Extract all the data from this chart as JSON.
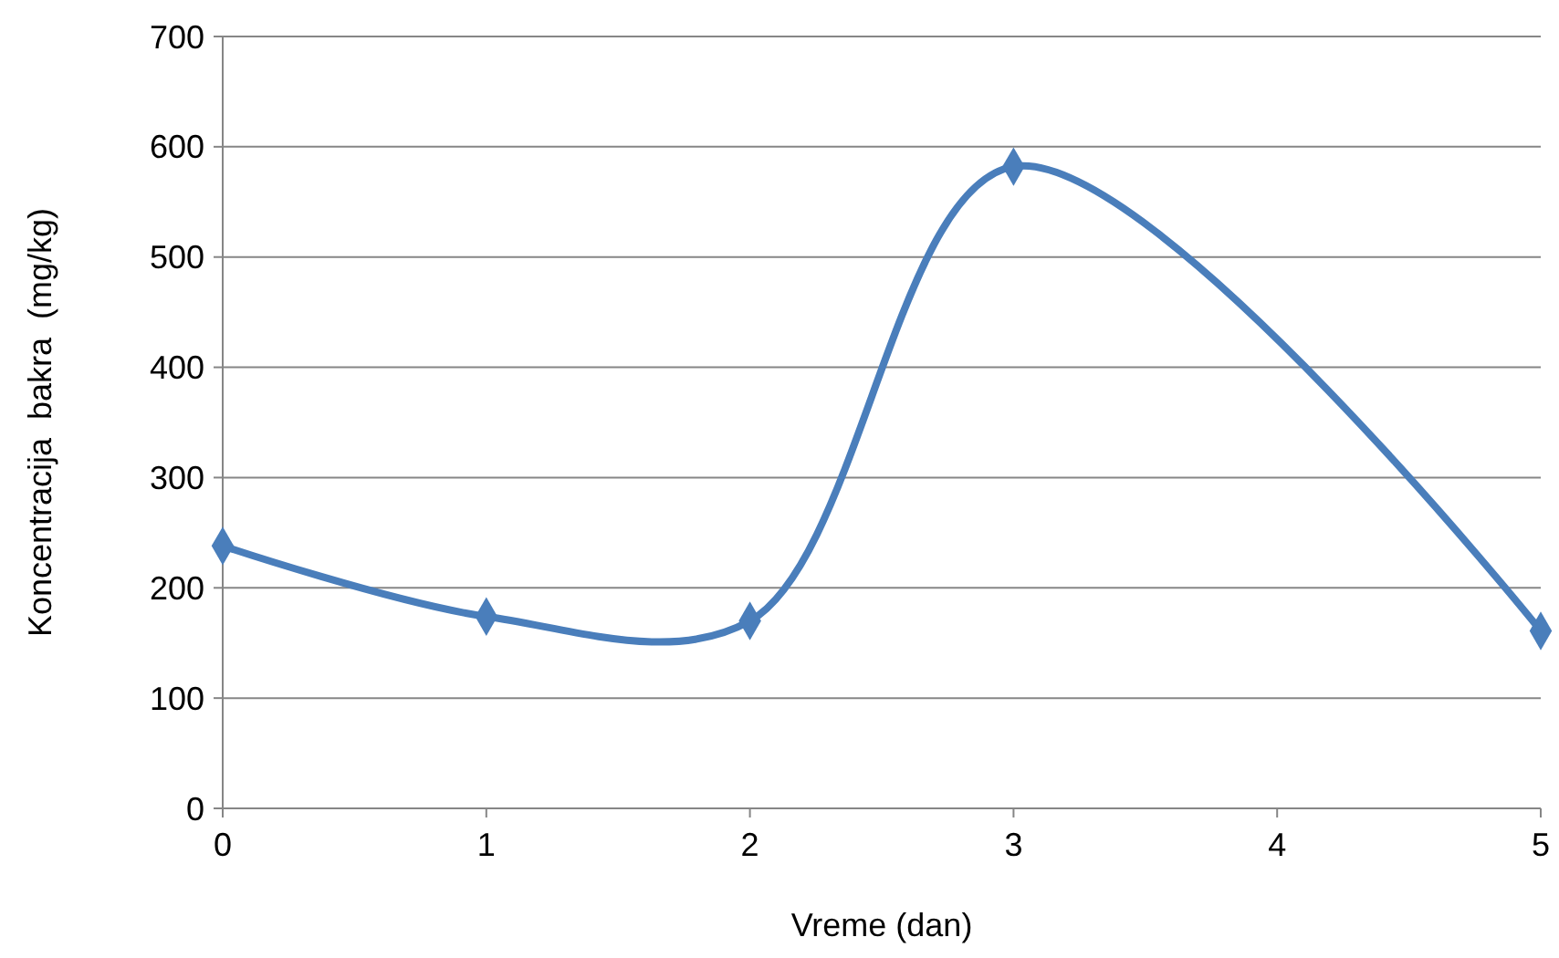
{
  "chart_data": {
    "type": "line",
    "xlabel": "Vreme (dan)",
    "ylabel": "Koncentracija  bakra  (mg/kg)",
    "x": [
      0,
      1,
      2,
      3,
      5
    ],
    "series": [
      {
        "color": "#4a7ebb",
        "values": [
          238,
          174,
          170,
          582,
          161
        ]
      }
    ],
    "xlim": [
      0,
      5
    ],
    "xticks": [
      0,
      1,
      2,
      3,
      4,
      5
    ],
    "ylim": [
      0,
      700
    ],
    "yticks": [
      0,
      100,
      200,
      300,
      400,
      500,
      600,
      700
    ],
    "grid": "y",
    "marker": "diamond",
    "line_style": "solid"
  }
}
